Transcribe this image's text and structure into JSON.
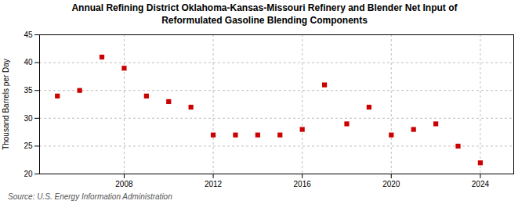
{
  "chart_data": {
    "type": "scatter",
    "title": "Annual Refining District Oklahoma-Kansas-Missouri Refinery and Blender Net Input of\nReformulated Gasoline Blending Components",
    "ylabel": "Thousand Barrels per Day",
    "source": "Source: U.S. Energy Information Administration",
    "x": [
      2005,
      2006,
      2007,
      2008,
      2009,
      2010,
      2011,
      2012,
      2013,
      2014,
      2015,
      2016,
      2017,
      2018,
      2019,
      2020,
      2021,
      2022,
      2023,
      2024
    ],
    "values": [
      34.0,
      35.0,
      41.0,
      39.0,
      34.0,
      33.0,
      32.0,
      27.0,
      27.0,
      27.0,
      27.0,
      28.0,
      36.0,
      29.0,
      32.0,
      27.0,
      28.0,
      29.0,
      25.0,
      22.0
    ],
    "color": "#cc0000",
    "marker": "square",
    "xlim": [
      2004.2,
      2025.5
    ],
    "xticks": [
      2008,
      2012,
      2016,
      2020,
      2024
    ],
    "ylim": [
      20,
      45
    ],
    "yticks": [
      20,
      25,
      30,
      35,
      40,
      45
    ],
    "grid": true
  }
}
